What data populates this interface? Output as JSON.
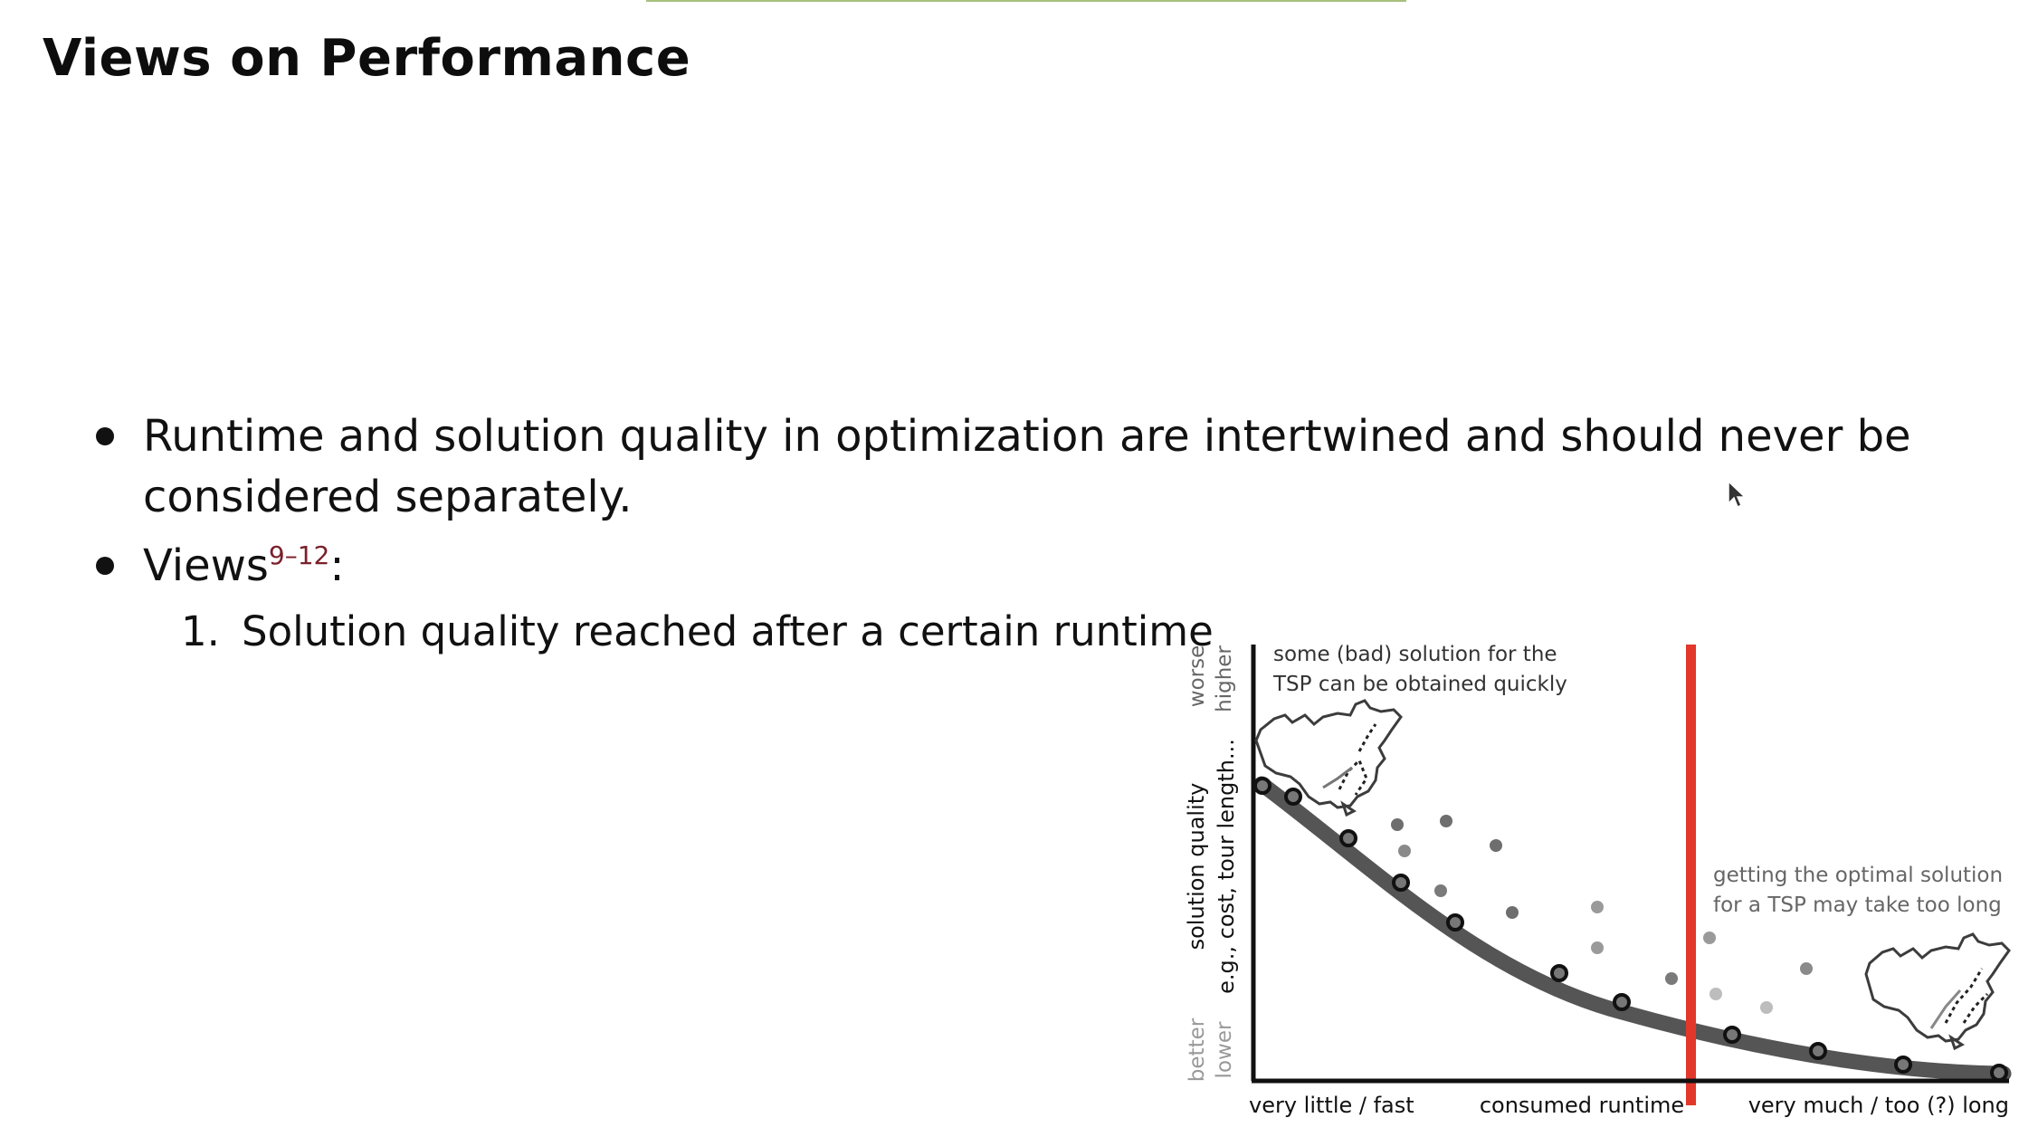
{
  "slide": {
    "title": "Views on Performance"
  },
  "bullets": [
    {
      "line1": "Runtime and solution quality in optimization are intertwined and should never be",
      "line2": "considered separately."
    },
    {
      "text": "Views",
      "citation": "9–12",
      "suffix": ":"
    }
  ],
  "numbered_items": [
    {
      "number": "1.",
      "text": "Solution quality reached after a certain runtime"
    }
  ],
  "figure": {
    "y_axis": {
      "label_main": "solution quality",
      "label_sub": "e.g., cost, tour length...",
      "top_worse": "worse",
      "top_higher": "higher",
      "bottom_better": "better",
      "bottom_lower": "lower"
    },
    "x_axis": {
      "left": "very little / fast",
      "center": "consumed runtime",
      "right": "very much / too (?) long"
    },
    "annotations": {
      "top_left_line1": "some (bad) solution for the",
      "top_left_line2": "TSP can be obtained quickly",
      "right_line1": "getting the optimal solution",
      "right_line2": "for a TSP may take too long"
    },
    "colors": {
      "axis": "#111111",
      "curve": "#555555",
      "marker": "#e2382c",
      "dot_dark": "#6e6e6e",
      "dot_mid": "#9a9a9a",
      "dot_light": "#bdbdbd"
    }
  }
}
